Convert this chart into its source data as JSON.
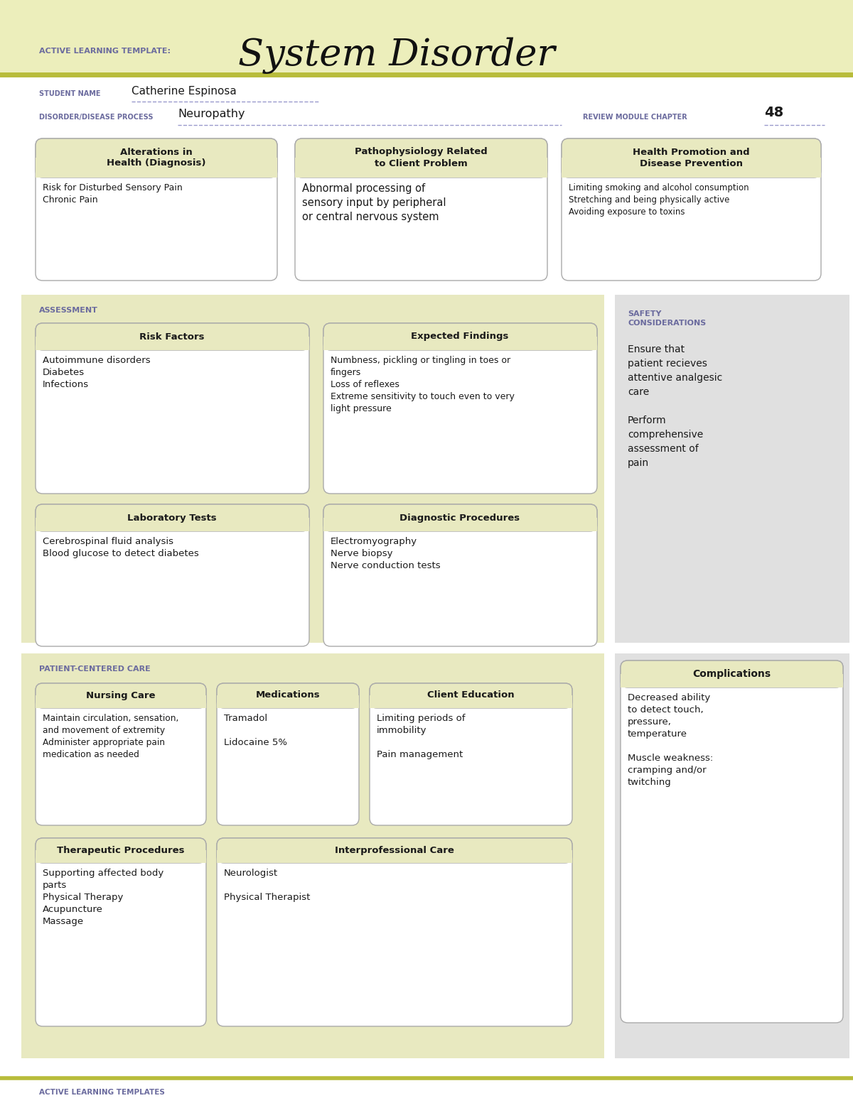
{
  "white": "#ffffff",
  "header_bg": "#eceebb",
  "section_bg": "#e8e9c0",
  "box_bg": "#ffffff",
  "box_border": "#aaaaaa",
  "olive_line": "#b8bc3a",
  "purple_text": "#6b6b9e",
  "dark_text": "#1a1a1a",
  "gray_section_bg": "#e0e0e0",
  "title_main": "System Disorder",
  "title_prefix": "ACTIVE LEARNING TEMPLATE:",
  "student_label": "STUDENT NAME",
  "student_name": "Catherine Espinosa",
  "disorder_label": "DISORDER/DISEASE PROCESS",
  "disorder_name": "Neuropathy",
  "review_label": "REVIEW MODULE CHAPTER",
  "review_num": "48",
  "box1_title": "Alterations in\nHealth (Diagnosis)",
  "box1_content": "Risk for Disturbed Sensory Pain\nChronic Pain",
  "box2_title": "Pathophysiology Related\nto Client Problem",
  "box2_content": "Abnormal processing of\nsensory input by peripheral\nor central nervous system",
  "box3_title": "Health Promotion and\nDisease Prevention",
  "box3_content": "Limiting smoking and alcohol consumption\nStretching and being physically active\nAvoiding exposure to toxins",
  "assess_label": "ASSESSMENT",
  "rf_title": "Risk Factors",
  "rf_content": "Autoimmune disorders\nDiabetes\nInfections",
  "ef_title": "Expected Findings",
  "ef_content": "Numbness, pickling or tingling in toes or\nfingers\nLoss of reflexes\nExtreme sensitivity to touch even to very\nlight pressure",
  "lt_title": "Laboratory Tests",
  "lt_content": "Cerebrospinal fluid analysis\nBlood glucose to detect diabetes",
  "dp_title": "Diagnostic Procedures",
  "dp_content": "Electromyography\nNerve biopsy\nNerve conduction tests",
  "safety_title": "SAFETY\nCONSIDERATIONS",
  "safety_content": "Ensure that\npatient recieves\nattentive analgesic\ncare\n\nPerform\ncomprehensive\nassessment of\npain",
  "pcc_label": "PATIENT-CENTERED CARE",
  "comp_title": "Complications",
  "comp_content": "Decreased ability\nto detect touch,\npressure,\ntemperature\n\nMuscle weakness:\ncramping and/or\ntwitching",
  "nc_title": "Nursing Care",
  "nc_content": "Maintain circulation, sensation,\nand movement of extremity\nAdminister appropriate pain\nmedication as needed",
  "med_title": "Medications",
  "med_content": "Tramadol\n\nLidocaine 5%",
  "ce_title": "Client Education",
  "ce_content": "Limiting periods of\nimmobility\n\nPain management",
  "tp_title": "Therapeutic Procedures",
  "tp_content": "Supporting affected body\nparts\nPhysical Therapy\nAcupuncture\nMassage",
  "ic_title": "Interprofessional Care",
  "ic_content": "Neurologist\n\nPhysical Therapist",
  "footer": "ACTIVE LEARNING TEMPLATES"
}
